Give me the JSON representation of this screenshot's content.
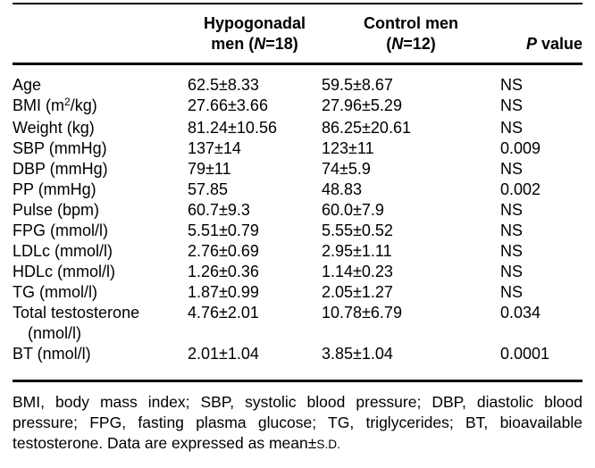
{
  "table": {
    "header": {
      "hypogonadal_line1": "Hypogonadal",
      "hypogonadal_line2_pre": "men (",
      "hypogonadal_n": "N",
      "hypogonadal_line2_post": "=18)",
      "control_line1": "Control men",
      "control_line2_pre": "(",
      "control_n": "N",
      "control_line2_post": "=12)",
      "p_label_italic": "P",
      "p_label_rest": " value"
    },
    "rows": [
      {
        "label": "Age",
        "hypogonadal": "62.5±8.33",
        "control": "59.5±8.67",
        "p": "NS"
      },
      {
        "label_pre": "BMI (m",
        "label_sup": "2",
        "label_post": "/kg)",
        "hypogonadal": "27.66±3.66",
        "control": "27.96±5.29",
        "p": "NS"
      },
      {
        "label": "Weight (kg)",
        "hypogonadal": "81.24±10.56",
        "control": "86.25±20.61",
        "p": "NS"
      },
      {
        "label": "SBP (mmHg)",
        "hypogonadal": "137±14",
        "control": "123±11",
        "p": "0.009"
      },
      {
        "label": "DBP (mmHg)",
        "hypogonadal": "79±11",
        "control": "74±5.9",
        "p": "NS"
      },
      {
        "label": "PP (mmHg)",
        "hypogonadal": "57.85",
        "control": "48.83",
        "p": "0.002"
      },
      {
        "label": "Pulse (bpm)",
        "hypogonadal": "60.7±9.3",
        "control": "60.0±7.9",
        "p": "NS"
      },
      {
        "label": "FPG (mmol/l)",
        "hypogonadal": "5.51±0.79",
        "control": "5.55±0.52",
        "p": "NS"
      },
      {
        "label": "LDLc (mmol/l)",
        "hypogonadal": "2.76±0.69",
        "control": "2.95±1.11",
        "p": "NS"
      },
      {
        "label": "HDLc (mmol/l)",
        "hypogonadal": "1.26±0.36",
        "control": "1.14±0.23",
        "p": "NS"
      },
      {
        "label": "TG (mmol/l)",
        "hypogonadal": "1.87±0.99",
        "control": "2.05±1.27",
        "p": "NS"
      },
      {
        "label_line1": "Total testosterone",
        "label_line2": "(nmol/l)",
        "hypogonadal": "4.76±2.01",
        "control": "10.78±6.79",
        "p": "0.034"
      },
      {
        "label": "BT (nmol/l)",
        "hypogonadal": "2.01±1.04",
        "control": "3.85±1.04",
        "p": "0.0001"
      }
    ],
    "footnote": {
      "text": "BMI, body mass index; SBP, systolic blood pressure; DBP, diastolic blood pressure; FPG, fasting plasma glucose; TG, triglycerides; BT, bioavailable testosterone. Data are expressed as mean±",
      "sd": "s.d."
    }
  }
}
